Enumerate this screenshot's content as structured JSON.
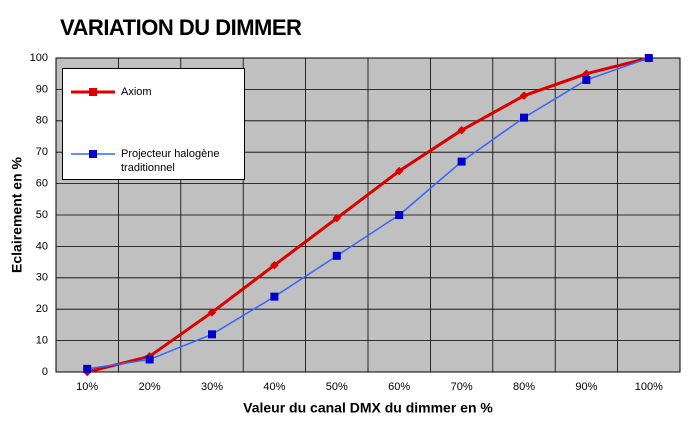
{
  "chart_data": {
    "type": "line",
    "title": "VARIATION DU DIMMER",
    "x_label": "Valeur du canal DMX du dimmer en %",
    "y_label": "Eclairement en %",
    "categories": [
      "10%",
      "20%",
      "30%",
      "40%",
      "50%",
      "60%",
      "70%",
      "80%",
      "90%",
      "100%"
    ],
    "series": [
      {
        "name": "Axiom",
        "color": "#dd0000",
        "values": [
          0,
          5,
          19,
          34,
          49,
          64,
          77,
          88,
          95,
          100
        ]
      },
      {
        "name": "Projecteur halogène traditionnel",
        "color": "#3366ff",
        "values": [
          1,
          4,
          12,
          24,
          37,
          50,
          67,
          81,
          93,
          100
        ]
      }
    ],
    "ylim": [
      0,
      100
    ],
    "yticks": [
      0,
      10,
      20,
      30,
      40,
      50,
      60,
      70,
      80,
      90,
      100
    ],
    "grid": true
  }
}
